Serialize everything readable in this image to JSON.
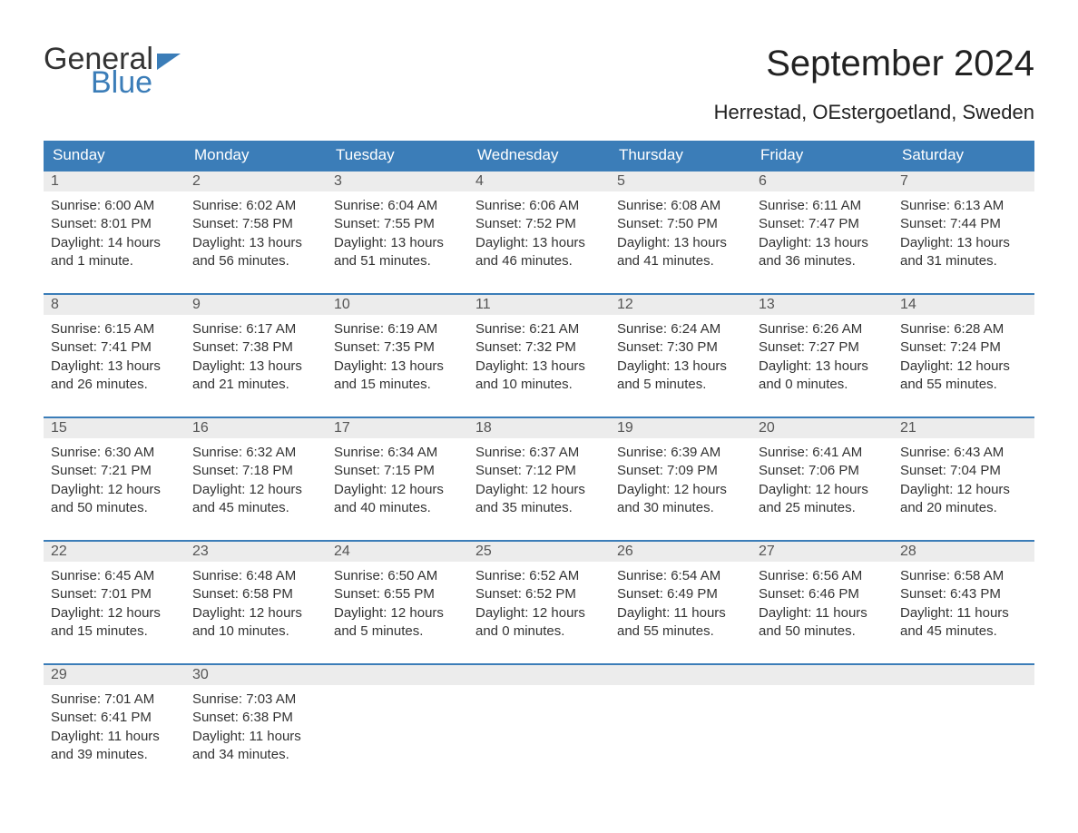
{
  "logo": {
    "word1": "General",
    "word2": "Blue"
  },
  "title": "September 2024",
  "location": "Herrestad, OEstergoetland, Sweden",
  "colors": {
    "header_bg": "#3b7db8",
    "header_text": "#ffffff",
    "daynum_bg": "#ececec",
    "row_border": "#3b7db8",
    "text": "#333333",
    "logo_blue": "#3b7db8"
  },
  "fonts": {
    "title_size": 40,
    "location_size": 22,
    "header_size": 17,
    "cell_size": 15
  },
  "weekdays": [
    "Sunday",
    "Monday",
    "Tuesday",
    "Wednesday",
    "Thursday",
    "Friday",
    "Saturday"
  ],
  "weeks": [
    [
      {
        "day": "1",
        "sunrise": "Sunrise: 6:00 AM",
        "sunset": "Sunset: 8:01 PM",
        "d1": "Daylight: 14 hours",
        "d2": "and 1 minute."
      },
      {
        "day": "2",
        "sunrise": "Sunrise: 6:02 AM",
        "sunset": "Sunset: 7:58 PM",
        "d1": "Daylight: 13 hours",
        "d2": "and 56 minutes."
      },
      {
        "day": "3",
        "sunrise": "Sunrise: 6:04 AM",
        "sunset": "Sunset: 7:55 PM",
        "d1": "Daylight: 13 hours",
        "d2": "and 51 minutes."
      },
      {
        "day": "4",
        "sunrise": "Sunrise: 6:06 AM",
        "sunset": "Sunset: 7:52 PM",
        "d1": "Daylight: 13 hours",
        "d2": "and 46 minutes."
      },
      {
        "day": "5",
        "sunrise": "Sunrise: 6:08 AM",
        "sunset": "Sunset: 7:50 PM",
        "d1": "Daylight: 13 hours",
        "d2": "and 41 minutes."
      },
      {
        "day": "6",
        "sunrise": "Sunrise: 6:11 AM",
        "sunset": "Sunset: 7:47 PM",
        "d1": "Daylight: 13 hours",
        "d2": "and 36 minutes."
      },
      {
        "day": "7",
        "sunrise": "Sunrise: 6:13 AM",
        "sunset": "Sunset: 7:44 PM",
        "d1": "Daylight: 13 hours",
        "d2": "and 31 minutes."
      }
    ],
    [
      {
        "day": "8",
        "sunrise": "Sunrise: 6:15 AM",
        "sunset": "Sunset: 7:41 PM",
        "d1": "Daylight: 13 hours",
        "d2": "and 26 minutes."
      },
      {
        "day": "9",
        "sunrise": "Sunrise: 6:17 AM",
        "sunset": "Sunset: 7:38 PM",
        "d1": "Daylight: 13 hours",
        "d2": "and 21 minutes."
      },
      {
        "day": "10",
        "sunrise": "Sunrise: 6:19 AM",
        "sunset": "Sunset: 7:35 PM",
        "d1": "Daylight: 13 hours",
        "d2": "and 15 minutes."
      },
      {
        "day": "11",
        "sunrise": "Sunrise: 6:21 AM",
        "sunset": "Sunset: 7:32 PM",
        "d1": "Daylight: 13 hours",
        "d2": "and 10 minutes."
      },
      {
        "day": "12",
        "sunrise": "Sunrise: 6:24 AM",
        "sunset": "Sunset: 7:30 PM",
        "d1": "Daylight: 13 hours",
        "d2": "and 5 minutes."
      },
      {
        "day": "13",
        "sunrise": "Sunrise: 6:26 AM",
        "sunset": "Sunset: 7:27 PM",
        "d1": "Daylight: 13 hours",
        "d2": "and 0 minutes."
      },
      {
        "day": "14",
        "sunrise": "Sunrise: 6:28 AM",
        "sunset": "Sunset: 7:24 PM",
        "d1": "Daylight: 12 hours",
        "d2": "and 55 minutes."
      }
    ],
    [
      {
        "day": "15",
        "sunrise": "Sunrise: 6:30 AM",
        "sunset": "Sunset: 7:21 PM",
        "d1": "Daylight: 12 hours",
        "d2": "and 50 minutes."
      },
      {
        "day": "16",
        "sunrise": "Sunrise: 6:32 AM",
        "sunset": "Sunset: 7:18 PM",
        "d1": "Daylight: 12 hours",
        "d2": "and 45 minutes."
      },
      {
        "day": "17",
        "sunrise": "Sunrise: 6:34 AM",
        "sunset": "Sunset: 7:15 PM",
        "d1": "Daylight: 12 hours",
        "d2": "and 40 minutes."
      },
      {
        "day": "18",
        "sunrise": "Sunrise: 6:37 AM",
        "sunset": "Sunset: 7:12 PM",
        "d1": "Daylight: 12 hours",
        "d2": "and 35 minutes."
      },
      {
        "day": "19",
        "sunrise": "Sunrise: 6:39 AM",
        "sunset": "Sunset: 7:09 PM",
        "d1": "Daylight: 12 hours",
        "d2": "and 30 minutes."
      },
      {
        "day": "20",
        "sunrise": "Sunrise: 6:41 AM",
        "sunset": "Sunset: 7:06 PM",
        "d1": "Daylight: 12 hours",
        "d2": "and 25 minutes."
      },
      {
        "day": "21",
        "sunrise": "Sunrise: 6:43 AM",
        "sunset": "Sunset: 7:04 PM",
        "d1": "Daylight: 12 hours",
        "d2": "and 20 minutes."
      }
    ],
    [
      {
        "day": "22",
        "sunrise": "Sunrise: 6:45 AM",
        "sunset": "Sunset: 7:01 PM",
        "d1": "Daylight: 12 hours",
        "d2": "and 15 minutes."
      },
      {
        "day": "23",
        "sunrise": "Sunrise: 6:48 AM",
        "sunset": "Sunset: 6:58 PM",
        "d1": "Daylight: 12 hours",
        "d2": "and 10 minutes."
      },
      {
        "day": "24",
        "sunrise": "Sunrise: 6:50 AM",
        "sunset": "Sunset: 6:55 PM",
        "d1": "Daylight: 12 hours",
        "d2": "and 5 minutes."
      },
      {
        "day": "25",
        "sunrise": "Sunrise: 6:52 AM",
        "sunset": "Sunset: 6:52 PM",
        "d1": "Daylight: 12 hours",
        "d2": "and 0 minutes."
      },
      {
        "day": "26",
        "sunrise": "Sunrise: 6:54 AM",
        "sunset": "Sunset: 6:49 PM",
        "d1": "Daylight: 11 hours",
        "d2": "and 55 minutes."
      },
      {
        "day": "27",
        "sunrise": "Sunrise: 6:56 AM",
        "sunset": "Sunset: 6:46 PM",
        "d1": "Daylight: 11 hours",
        "d2": "and 50 minutes."
      },
      {
        "day": "28",
        "sunrise": "Sunrise: 6:58 AM",
        "sunset": "Sunset: 6:43 PM",
        "d1": "Daylight: 11 hours",
        "d2": "and 45 minutes."
      }
    ],
    [
      {
        "day": "29",
        "sunrise": "Sunrise: 7:01 AM",
        "sunset": "Sunset: 6:41 PM",
        "d1": "Daylight: 11 hours",
        "d2": "and 39 minutes."
      },
      {
        "day": "30",
        "sunrise": "Sunrise: 7:03 AM",
        "sunset": "Sunset: 6:38 PM",
        "d1": "Daylight: 11 hours",
        "d2": "and 34 minutes."
      },
      null,
      null,
      null,
      null,
      null
    ]
  ]
}
